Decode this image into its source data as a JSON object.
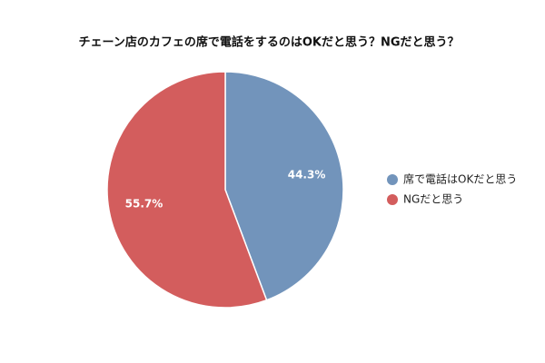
{
  "chart_data": {
    "type": "pie",
    "title": "チェーン店のカフェの席で電話をするのはOKだと思う？NGだと思う？",
    "categories": [
      "席で電話はOKだと思う",
      "NGだと思う"
    ],
    "values": [
      44.3,
      55.7
    ],
    "value_labels": [
      "44.3%",
      "55.7%"
    ],
    "colors": [
      "#7294bb",
      "#d35d5d"
    ],
    "legend": "right"
  }
}
